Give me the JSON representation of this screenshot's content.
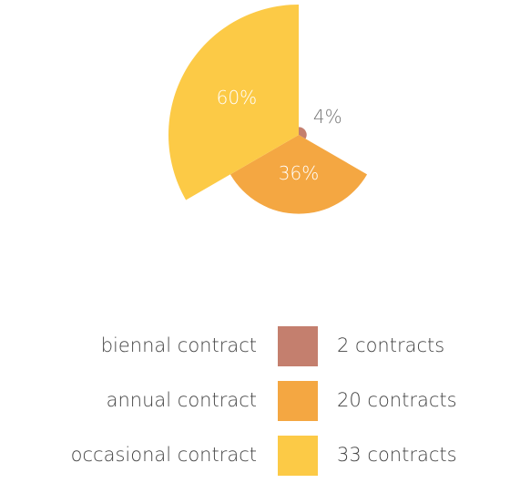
{
  "chart_data": {
    "type": "polar-area",
    "categories": [
      "biennal contract",
      "annual contract",
      "occasional contract"
    ],
    "values": [
      4,
      36,
      60
    ],
    "value_labels": [
      "4%",
      "36%",
      "60%"
    ],
    "counts": [
      2,
      20,
      33
    ],
    "count_labels": [
      "2 contracts",
      "20 contracts",
      "33 contracts"
    ],
    "colors": [
      "#c47f6e",
      "#f4a742",
      "#fcca46"
    ]
  }
}
